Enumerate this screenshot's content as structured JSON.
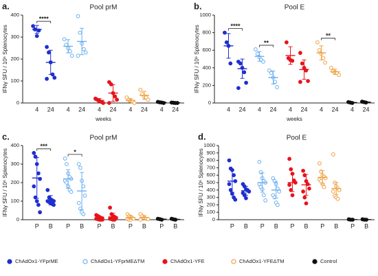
{
  "chart_data": [
    {
      "type": "dot",
      "panel_label": "a.",
      "title": "Pool prM",
      "ylabel": "IFNγ SFU / 10⁶ Splenocytes",
      "xlabel": "weeks",
      "categories": [
        "4",
        "24",
        "4",
        "24",
        "4",
        "24",
        "4",
        "24",
        "4",
        "24"
      ],
      "ylim": [
        0,
        400
      ],
      "yticks": [
        0,
        100,
        200,
        300,
        400
      ],
      "series": [
        {
          "name": "ChAdOx1-YFprME",
          "color": "#1f2fd0",
          "filled": true,
          "values": [
            [
              350,
              335,
              305,
              330
            ],
            [
              255,
              230,
              185,
              130,
              115,
              110
            ]
          ],
          "means": [
            335,
            185
          ],
          "errors": [
            18,
            55
          ],
          "significance": "****"
        },
        {
          "name": "ChAdOx1-YFprMEΔTM",
          "color": "#6aaef0",
          "filled": false,
          "values": [
            [
              290,
              265,
              250,
              235,
              215
            ],
            [
              395,
              320,
              270,
              245,
              230,
              215
            ]
          ],
          "means": [
            258,
            280
          ],
          "errors": [
            30,
            60
          ]
        },
        {
          "name": "ChAdOx1-YFE",
          "color": "#e8141b",
          "filled": true,
          "values": [
            [
              20,
              15,
              10,
              5,
              0
            ],
            [
              95,
              85,
              45,
              30,
              15,
              0
            ]
          ],
          "means": [
            12,
            45
          ],
          "errors": [
            8,
            38
          ]
        },
        {
          "name": "ChAdOx1-YFEΔTM",
          "color": "#f0a040",
          "filled": false,
          "values": [
            [
              25,
              15,
              10,
              5,
              0
            ],
            [
              60,
              40,
              30,
              25,
              15
            ]
          ],
          "means": [
            12,
            35
          ],
          "errors": [
            8,
            18
          ]
        },
        {
          "name": "Control",
          "color": "#111111",
          "filled": true,
          "values": [
            [
              5,
              3,
              2,
              0
            ],
            [
              2,
              1,
              0,
              0
            ]
          ],
          "means": [
            3,
            1
          ],
          "errors": [
            2,
            1
          ]
        }
      ]
    },
    {
      "type": "dot",
      "panel_label": "b.",
      "title": "Pool E",
      "ylabel": "IFNγ SFU / 10⁶ Splenocytes",
      "xlabel": "weeks",
      "categories": [
        "4",
        "24",
        "4",
        "24",
        "4",
        "24",
        "4",
        "24",
        "4",
        "24"
      ],
      "ylim": [
        0,
        1000
      ],
      "yticks": [
        0,
        200,
        400,
        600,
        800,
        1000
      ],
      "series": [
        {
          "color": "#1f2fd0",
          "filled": true,
          "values": [
            [
              800,
              690,
              650,
              450
            ],
            [
              470,
              450,
              400,
              350,
              230,
              170
            ]
          ],
          "means": [
            650,
            390
          ],
          "errors": [
            140,
            110
          ],
          "significance": "****"
        },
        {
          "color": "#6aaef0",
          "filled": false,
          "values": [
            [
              610,
              560,
              520,
              490,
              470
            ],
            [
              370,
              340,
              290,
              240,
              180
            ]
          ],
          "means": [
            530,
            290
          ],
          "errors": [
            55,
            75
          ],
          "significance": "**"
        },
        {
          "color": "#e8141b",
          "filled": true,
          "values": [
            [
              690,
              510,
              490,
              480
            ],
            [
              570,
              450,
              400,
              370,
              250,
              240
            ]
          ],
          "means": [
            540,
            380
          ],
          "errors": [
            100,
            110
          ]
        },
        {
          "color": "#f0a040",
          "filled": false,
          "values": [
            [
              690,
              600,
              560,
              510,
              460
            ],
            [
              400,
              360,
              350,
              340,
              320
            ]
          ],
          "means": [
            570,
            355
          ],
          "errors": [
            80,
            30
          ],
          "significance": "**"
        },
        {
          "color": "#111111",
          "filled": true,
          "values": [
            [
              10,
              5,
              0
            ],
            [
              15,
              10,
              5
            ]
          ],
          "means": [
            5,
            10
          ],
          "errors": [
            5,
            5
          ]
        }
      ]
    },
    {
      "type": "dot",
      "panel_label": "c.",
      "title": "Pool prM",
      "ylabel": "IFNγ SFU / 10⁶ Splenocytes",
      "categories": [
        "P",
        "B",
        "P",
        "B",
        "P",
        "B",
        "P",
        "B",
        "P",
        "B"
      ],
      "ylim": [
        0,
        400
      ],
      "yticks": [
        0,
        100,
        200,
        300,
        400
      ],
      "series": [
        {
          "color": "#1f2fd0",
          "filled": true,
          "values": [
            [
              360,
              340,
              300,
              250,
              220,
              180,
              120,
              100,
              80,
              40
            ],
            [
              160,
              120,
              110,
              105,
              100,
              100,
              95,
              90,
              85,
              80
            ]
          ],
          "means": [
            225,
            105
          ],
          "errors": [
            110,
            25
          ],
          "significance": "***"
        },
        {
          "color": "#6aaef0",
          "filled": false,
          "values": [
            [
              330,
              300,
              250,
              230,
              220,
              210,
              200,
              180,
              160,
              150
            ],
            [
              300,
              280,
              210,
              180,
              130,
              90,
              60,
              40,
              30
            ]
          ],
          "means": [
            220,
            155
          ],
          "errors": [
            50,
            100
          ],
          "significance": "*"
        },
        {
          "color": "#e8141b",
          "filled": true,
          "values": [
            [
              25,
              20,
              15,
              10,
              8,
              5,
              3,
              0,
              0,
              0
            ],
            [
              65,
              30,
              20,
              15,
              10,
              5,
              3,
              0,
              0
            ]
          ],
          "means": [
            10,
            15
          ],
          "errors": [
            8,
            20
          ]
        },
        {
          "color": "#f0a040",
          "filled": false,
          "values": [
            [
              30,
              20,
              15,
              10,
              5,
              3,
              0,
              0
            ],
            [
              30,
              20,
              10,
              5,
              3,
              0
            ]
          ],
          "means": [
            12,
            12
          ],
          "errors": [
            10,
            10
          ]
        },
        {
          "color": "#111111",
          "filled": true,
          "values": [
            [
              5,
              3,
              0
            ],
            [
              5,
              2,
              0
            ]
          ],
          "means": [
            3,
            2
          ],
          "errors": [
            2,
            2
          ]
        }
      ]
    },
    {
      "type": "dot",
      "panel_label": "d.",
      "title": "Pool E",
      "ylabel": "IFNγ SFU / 10⁶ Splenocytes",
      "categories": [
        "P",
        "B",
        "P",
        "B",
        "P",
        "B",
        "P",
        "B",
        "P",
        "B"
      ],
      "ylim": [
        0,
        1000
      ],
      "yticks": [
        0,
        100,
        200,
        300,
        400,
        500,
        600,
        700,
        800,
        900,
        1000
      ],
      "series": [
        {
          "color": "#1f2fd0",
          "filled": true,
          "values": [
            [
              800,
              690,
              670,
              600,
              520,
              480,
              400,
              350,
              300,
              270
            ],
            [
              480,
              450,
              410,
              400,
              380,
              360,
              330,
              290
            ]
          ],
          "means": [
            520,
            390
          ],
          "errors": [
            150,
            60
          ]
        },
        {
          "color": "#6aaef0",
          "filled": false,
          "values": [
            [
              780,
              640,
              560,
              520,
              500,
              480,
              440,
              410,
              330,
              260
            ],
            [
              560,
              520,
              480,
              420,
              380,
              330,
              300,
              230,
              200
            ]
          ],
          "means": [
            500,
            400
          ],
          "errors": [
            130,
            110
          ]
        },
        {
          "color": "#e8141b",
          "filled": true,
          "values": [
            [
              820,
              680,
              620,
              530,
              500,
              470,
              400,
              330
            ],
            [
              660,
              600,
              520,
              480,
              420,
              380,
              300,
              220
            ]
          ],
          "means": [
            500,
            470
          ],
          "errors": [
            120,
            140
          ]
        },
        {
          "color": "#f0a040",
          "filled": false,
          "values": [
            [
              760,
              650,
              600,
              580,
              560,
              540,
              520,
              480,
              440
            ],
            [
              880,
              500,
              450,
              420,
              400,
              380,
              320,
              300,
              280
            ]
          ],
          "means": [
            570,
            420
          ],
          "errors": [
            90,
            80
          ]
        },
        {
          "color": "#111111",
          "filled": true,
          "values": [
            [
              5,
              0,
              0
            ],
            [
              5,
              0,
              0
            ]
          ],
          "means": [
            2,
            2
          ],
          "errors": [
            2,
            2
          ]
        }
      ]
    }
  ]
}
